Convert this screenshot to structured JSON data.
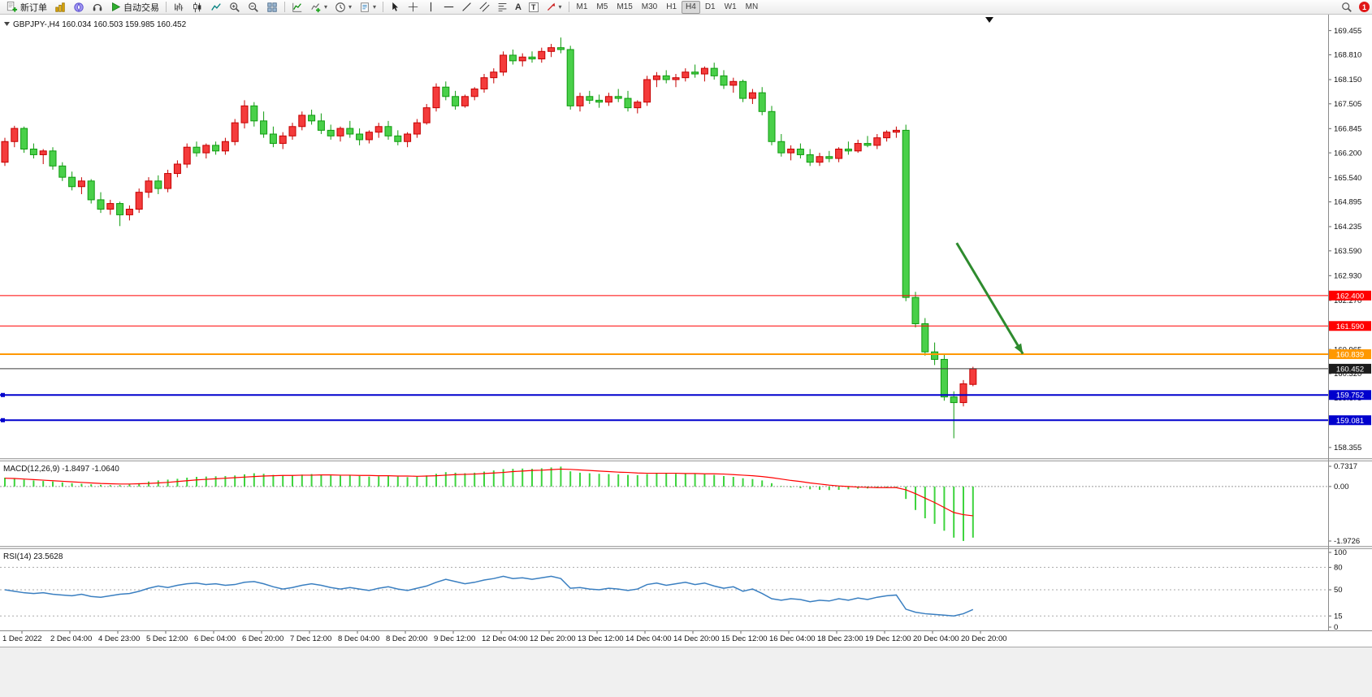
{
  "toolbar": {
    "new_order": "新订单",
    "auto_trading": "自动交易",
    "text_tool": "A",
    "label_tool": "T",
    "timeframes": [
      "M1",
      "M5",
      "M15",
      "M30",
      "H1",
      "H4",
      "D1",
      "W1",
      "MN"
    ],
    "active_timeframe": "H4",
    "notification_count": "1"
  },
  "chart": {
    "symbol_line": "GBPJPY-,H4  160.034 160.503 159.985 160.452",
    "macd_label": "MACD(12,26,9) -1.8497 -1.0640",
    "rsi_label": "RSI(14) 23.5628"
  },
  "chart_data": {
    "type": "candlestick",
    "symbol": "GBPJPY-",
    "timeframe": "H4",
    "ohlc_display": {
      "open": "160.034",
      "high": "160.503",
      "low": "159.985",
      "close": "160.452"
    },
    "ylim": [
      158.2,
      169.75
    ],
    "price_axis": [
      "169.455",
      "168.810",
      "168.150",
      "167.505",
      "166.845",
      "166.200",
      "165.540",
      "164.895",
      "164.235",
      "163.590",
      "162.930",
      "162.270",
      "161.610",
      "160.965",
      "160.320",
      "159.675",
      "159.030",
      "158.355"
    ],
    "colors": {
      "up_fill": "#f43b3b",
      "up_stroke": "#c60000",
      "down_fill": "#49d049",
      "down_stroke": "#0f9b0f",
      "macd_hist": "#3ed43e",
      "macd_signal": "#ff0000",
      "rsi": "#3a7fc1"
    },
    "candles": [
      [
        165.95,
        166.6,
        165.85,
        166.5
      ],
      [
        166.5,
        166.92,
        166.35,
        166.85
      ],
      [
        166.85,
        166.9,
        166.2,
        166.3
      ],
      [
        166.3,
        166.45,
        166.05,
        166.15
      ],
      [
        166.15,
        166.3,
        165.9,
        166.25
      ],
      [
        166.25,
        166.35,
        165.75,
        165.85
      ],
      [
        165.85,
        165.95,
        165.45,
        165.55
      ],
      [
        165.55,
        165.7,
        165.2,
        165.3
      ],
      [
        165.3,
        165.55,
        165.1,
        165.45
      ],
      [
        165.45,
        165.5,
        164.85,
        164.95
      ],
      [
        164.95,
        165.15,
        164.6,
        164.7
      ],
      [
        164.7,
        164.95,
        164.55,
        164.85
      ],
      [
        164.85,
        164.9,
        164.25,
        164.55
      ],
      [
        164.55,
        164.8,
        164.4,
        164.7
      ],
      [
        164.7,
        165.25,
        164.6,
        165.15
      ],
      [
        165.15,
        165.55,
        165.0,
        165.45
      ],
      [
        165.45,
        165.6,
        165.1,
        165.25
      ],
      [
        165.25,
        165.75,
        165.15,
        165.65
      ],
      [
        165.65,
        166.0,
        165.55,
        165.9
      ],
      [
        165.9,
        166.45,
        165.8,
        166.35
      ],
      [
        166.35,
        166.5,
        166.1,
        166.2
      ],
      [
        166.2,
        166.45,
        166.05,
        166.4
      ],
      [
        166.4,
        166.5,
        166.15,
        166.25
      ],
      [
        166.25,
        166.6,
        166.15,
        166.5
      ],
      [
        166.5,
        167.1,
        166.4,
        167.0
      ],
      [
        167.0,
        167.6,
        166.85,
        167.45
      ],
      [
        167.45,
        167.55,
        166.9,
        167.05
      ],
      [
        167.05,
        167.3,
        166.6,
        166.7
      ],
      [
        166.7,
        166.9,
        166.35,
        166.45
      ],
      [
        166.45,
        166.75,
        166.3,
        166.65
      ],
      [
        166.65,
        167.0,
        166.55,
        166.9
      ],
      [
        166.9,
        167.3,
        166.8,
        167.2
      ],
      [
        167.2,
        167.35,
        166.95,
        167.05
      ],
      [
        167.05,
        167.25,
        166.7,
        166.8
      ],
      [
        166.8,
        166.95,
        166.55,
        166.65
      ],
      [
        166.65,
        166.9,
        166.5,
        166.85
      ],
      [
        166.85,
        167.05,
        166.6,
        166.7
      ],
      [
        166.7,
        166.85,
        166.4,
        166.55
      ],
      [
        166.55,
        166.8,
        166.45,
        166.75
      ],
      [
        166.75,
        167.0,
        166.6,
        166.9
      ],
      [
        166.9,
        167.05,
        166.55,
        166.65
      ],
      [
        166.65,
        166.8,
        166.4,
        166.5
      ],
      [
        166.5,
        166.75,
        166.35,
        166.7
      ],
      [
        166.7,
        167.1,
        166.6,
        167.0
      ],
      [
        167.0,
        167.5,
        166.95,
        167.4
      ],
      [
        167.4,
        168.05,
        167.3,
        167.95
      ],
      [
        167.95,
        168.1,
        167.6,
        167.7
      ],
      [
        167.7,
        167.85,
        167.35,
        167.45
      ],
      [
        167.45,
        167.75,
        167.4,
        167.7
      ],
      [
        167.7,
        167.95,
        167.6,
        167.9
      ],
      [
        167.9,
        168.3,
        167.8,
        168.2
      ],
      [
        168.2,
        168.45,
        168.05,
        168.35
      ],
      [
        168.35,
        168.9,
        168.25,
        168.8
      ],
      [
        168.8,
        168.95,
        168.55,
        168.65
      ],
      [
        168.65,
        168.85,
        168.5,
        168.75
      ],
      [
        168.75,
        168.9,
        168.6,
        168.7
      ],
      [
        168.7,
        169.0,
        168.6,
        168.9
      ],
      [
        168.9,
        169.1,
        168.75,
        169.0
      ],
      [
        169.0,
        169.27,
        168.85,
        168.95
      ],
      [
        168.95,
        169.05,
        167.35,
        167.45
      ],
      [
        167.45,
        167.8,
        167.3,
        167.7
      ],
      [
        167.7,
        167.85,
        167.5,
        167.6
      ],
      [
        167.6,
        167.75,
        167.4,
        167.55
      ],
      [
        167.55,
        167.8,
        167.45,
        167.7
      ],
      [
        167.7,
        167.9,
        167.55,
        167.65
      ],
      [
        167.65,
        167.85,
        167.3,
        167.4
      ],
      [
        167.4,
        167.6,
        167.25,
        167.55
      ],
      [
        167.55,
        168.25,
        167.45,
        168.15
      ],
      [
        168.15,
        168.35,
        167.95,
        168.25
      ],
      [
        168.25,
        168.4,
        168.05,
        168.15
      ],
      [
        168.15,
        168.3,
        167.95,
        168.2
      ],
      [
        168.2,
        168.45,
        168.1,
        168.35
      ],
      [
        168.35,
        168.55,
        168.2,
        168.3
      ],
      [
        168.3,
        168.5,
        168.1,
        168.45
      ],
      [
        168.45,
        168.6,
        168.15,
        168.25
      ],
      [
        168.25,
        168.4,
        167.9,
        168.0
      ],
      [
        168.0,
        168.2,
        167.8,
        168.1
      ],
      [
        168.1,
        168.15,
        167.55,
        167.65
      ],
      [
        167.65,
        167.9,
        167.5,
        167.8
      ],
      [
        167.8,
        167.95,
        167.2,
        167.3
      ],
      [
        167.3,
        167.45,
        166.4,
        166.5
      ],
      [
        166.5,
        166.7,
        166.1,
        166.2
      ],
      [
        166.2,
        166.4,
        166.0,
        166.3
      ],
      [
        166.3,
        166.45,
        166.05,
        166.15
      ],
      [
        166.15,
        166.3,
        165.85,
        165.95
      ],
      [
        165.95,
        166.2,
        165.85,
        166.1
      ],
      [
        166.1,
        166.25,
        165.95,
        166.05
      ],
      [
        166.05,
        166.35,
        165.95,
        166.3
      ],
      [
        166.3,
        166.5,
        166.15,
        166.25
      ],
      [
        166.25,
        166.55,
        166.2,
        166.45
      ],
      [
        166.45,
        166.65,
        166.35,
        166.4
      ],
      [
        166.4,
        166.7,
        166.3,
        166.6
      ],
      [
        166.6,
        166.8,
        166.5,
        166.75
      ],
      [
        166.75,
        166.9,
        166.6,
        166.8
      ],
      [
        166.8,
        166.95,
        162.25,
        162.35
      ],
      [
        162.35,
        162.5,
        161.55,
        161.65
      ],
      [
        161.65,
        161.8,
        160.8,
        160.9
      ],
      [
        160.9,
        161.15,
        160.55,
        160.7
      ],
      [
        160.7,
        160.85,
        159.6,
        159.7
      ],
      [
        159.7,
        159.85,
        158.6,
        159.55
      ],
      [
        159.55,
        160.15,
        159.45,
        160.05
      ],
      [
        160.034,
        160.503,
        159.985,
        160.452
      ]
    ],
    "hlines": [
      {
        "price": 162.4,
        "label": "162.400",
        "color": "#ff0000",
        "width": 1,
        "handle": false
      },
      {
        "price": 161.59,
        "label": "161.590",
        "color": "#ff0000",
        "width": 1,
        "handle": false
      },
      {
        "price": 160.839,
        "label": "160.839",
        "color": "#ff9800",
        "width": 2,
        "handle": false
      },
      {
        "price": 160.452,
        "label": "160.452",
        "color": "#3c3c3c",
        "width": 1,
        "handle": false,
        "label_bg": "#1c1c1c"
      },
      {
        "price": 159.752,
        "label": "159.752",
        "color": "#0000cd",
        "width": 2,
        "handle": true
      },
      {
        "price": 159.081,
        "label": "159.081",
        "color": "#0000cd",
        "width": 2,
        "handle": true
      }
    ],
    "arrow": {
      "from": {
        "bar": 99.3,
        "price": 163.8
      },
      "to": {
        "bar": 106.2,
        "price": 160.85
      },
      "color": "#2e8b2e"
    },
    "macd": {
      "label": "MACD(12,26,9) -1.8497 -1.0640",
      "max": 0.7317,
      "min": -1.9726,
      "axis": [
        {
          "label": "0.7317",
          "value": 0.7317
        },
        {
          "label": "0.00",
          "value": 0
        },
        {
          "label": "-1.9726",
          "value": -1.9726
        }
      ],
      "values": [
        0.32,
        0.28,
        0.25,
        0.22,
        0.2,
        0.18,
        0.15,
        0.12,
        0.1,
        0.08,
        0.06,
        0.05,
        0.05,
        0.08,
        0.12,
        0.18,
        0.22,
        0.25,
        0.28,
        0.32,
        0.35,
        0.36,
        0.37,
        0.38,
        0.4,
        0.44,
        0.48,
        0.46,
        0.42,
        0.4,
        0.41,
        0.43,
        0.45,
        0.43,
        0.4,
        0.39,
        0.4,
        0.38,
        0.36,
        0.37,
        0.38,
        0.36,
        0.34,
        0.36,
        0.4,
        0.46,
        0.52,
        0.5,
        0.48,
        0.5,
        0.54,
        0.58,
        0.63,
        0.64,
        0.65,
        0.64,
        0.66,
        0.69,
        0.72,
        0.55,
        0.5,
        0.48,
        0.46,
        0.45,
        0.44,
        0.42,
        0.41,
        0.45,
        0.48,
        0.47,
        0.46,
        0.46,
        0.45,
        0.44,
        0.42,
        0.38,
        0.35,
        0.3,
        0.27,
        0.22,
        0.12,
        0.02,
        -0.03,
        -0.06,
        -0.1,
        -0.12,
        -0.13,
        -0.12,
        -0.1,
        -0.08,
        -0.07,
        -0.05,
        -0.03,
        -0.02,
        -0.45,
        -0.85,
        -1.15,
        -1.35,
        -1.6,
        -1.85,
        -1.97,
        -1.85
      ],
      "signal": [
        0.3,
        0.29,
        0.27,
        0.25,
        0.23,
        0.21,
        0.19,
        0.17,
        0.15,
        0.13,
        0.11,
        0.1,
        0.09,
        0.09,
        0.1,
        0.11,
        0.13,
        0.15,
        0.18,
        0.21,
        0.24,
        0.26,
        0.28,
        0.3,
        0.32,
        0.34,
        0.36,
        0.38,
        0.39,
        0.4,
        0.4,
        0.41,
        0.41,
        0.42,
        0.42,
        0.41,
        0.41,
        0.4,
        0.4,
        0.39,
        0.39,
        0.38,
        0.38,
        0.37,
        0.38,
        0.39,
        0.41,
        0.43,
        0.44,
        0.45,
        0.47,
        0.49,
        0.51,
        0.54,
        0.56,
        0.58,
        0.59,
        0.61,
        0.63,
        0.62,
        0.6,
        0.58,
        0.56,
        0.54,
        0.52,
        0.51,
        0.49,
        0.48,
        0.48,
        0.48,
        0.48,
        0.47,
        0.47,
        0.46,
        0.46,
        0.45,
        0.43,
        0.41,
        0.39,
        0.36,
        0.32,
        0.27,
        0.22,
        0.18,
        0.13,
        0.09,
        0.05,
        0.02,
        0.0,
        -0.02,
        -0.03,
        -0.04,
        -0.04,
        -0.04,
        -0.12,
        -0.26,
        -0.42,
        -0.58,
        -0.76,
        -0.94,
        -1.02,
        -1.06
      ]
    },
    "rsi": {
      "label": "RSI(14) 23.5628",
      "current": 23.5628,
      "levels": [
        80,
        50,
        15
      ],
      "axis": [
        {
          "label": "100",
          "value": 100
        },
        {
          "label": "80",
          "value": 80
        },
        {
          "label": "50",
          "value": 50
        },
        {
          "label": "15",
          "value": 15
        },
        {
          "label": "0",
          "value": 0
        }
      ],
      "values": [
        50,
        48,
        46,
        45,
        46,
        44,
        43,
        42,
        44,
        41,
        40,
        42,
        44,
        45,
        48,
        52,
        55,
        53,
        56,
        58,
        59,
        57,
        58,
        56,
        57,
        60,
        61,
        58,
        54,
        51,
        53,
        56,
        58,
        56,
        53,
        51,
        53,
        51,
        49,
        52,
        54,
        51,
        49,
        52,
        55,
        60,
        64,
        61,
        58,
        60,
        63,
        65,
        68,
        65,
        66,
        64,
        66,
        68,
        65,
        52,
        53,
        51,
        50,
        52,
        51,
        49,
        51,
        57,
        59,
        56,
        58,
        60,
        57,
        59,
        55,
        52,
        54,
        48,
        51,
        45,
        38,
        36,
        38,
        37,
        34,
        36,
        35,
        38,
        36,
        39,
        37,
        40,
        42,
        43,
        24,
        20,
        18,
        17,
        16,
        15,
        18,
        23.56
      ]
    },
    "time_axis": [
      "1 Dec 2022",
      "2 Dec 04:00",
      "4 Dec 23:00",
      "5 Dec 12:00",
      "6 Dec 04:00",
      "6 Dec 20:00",
      "7 Dec 12:00",
      "8 Dec 04:00",
      "8 Dec 20:00",
      "9 Dec 12:00",
      "12 Dec 04:00",
      "12 Dec 20:00",
      "13 Dec 12:00",
      "14 Dec 04:00",
      "14 Dec 20:00",
      "15 Dec 12:00",
      "16 Dec 04:00",
      "18 Dec 23:00",
      "19 Dec 12:00",
      "20 Dec 04:00",
      "20 Dec 20:00"
    ]
  }
}
